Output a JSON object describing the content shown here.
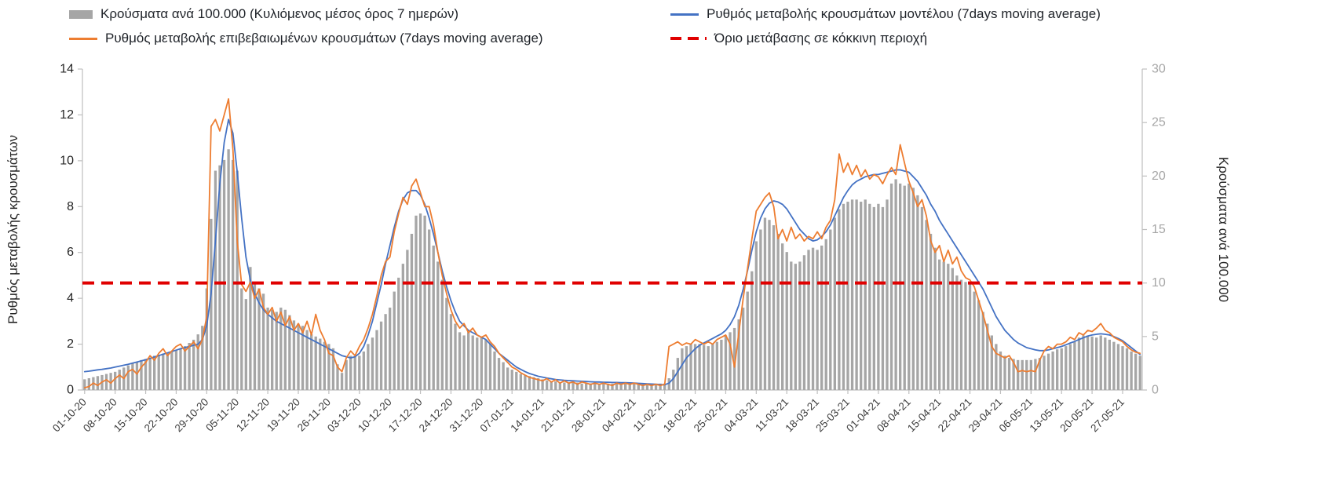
{
  "page": {
    "background": "#ffffff"
  },
  "chart_data": {
    "type": "combo",
    "title": "",
    "n_days": 243,
    "x_axis": {
      "tick_interval_days": 7,
      "tick_labels": [
        "01-10-20",
        "08-10-20",
        "15-10-20",
        "22-10-20",
        "29-10-20",
        "05-11-20",
        "12-11-20",
        "19-11-20",
        "26-11-20",
        "03-12-20",
        "10-12-20",
        "17-12-20",
        "24-12-20",
        "31-12-20",
        "07-01-21",
        "14-01-21",
        "21-01-21",
        "28-01-21",
        "04-02-21",
        "11-02-21",
        "18-02-21",
        "25-02-21",
        "04-03-21",
        "11-03-21",
        "18-03-21",
        "25-03-21",
        "01-04-21",
        "08-04-21",
        "15-04-21",
        "22-04-21",
        "29-04-21",
        "06-05-21",
        "13-05-21",
        "20-05-21",
        "27-05-21"
      ]
    },
    "left_axis": {
      "label": "Ρυθμός μεταβολής κρουσμάτων",
      "min": 0,
      "max": 14,
      "ticks": [
        0,
        2,
        4,
        6,
        8,
        10,
        12,
        14
      ]
    },
    "right_axis": {
      "label": "Κρούσματα ανά 100.000",
      "min": 0,
      "max": 30,
      "ticks": [
        0,
        5,
        10,
        15,
        20,
        25,
        30
      ]
    },
    "grid": false,
    "legend_position": "top",
    "series": [
      {
        "name": "Κρούσματα ανά 100.000 (Κυλιόμενος μέσος όρος 7 ημερών)",
        "kind": "bar",
        "axis": "right",
        "color": "#a6a6a6",
        "values": [
          1.0,
          1.1,
          1.2,
          1.3,
          1.4,
          1.5,
          1.6,
          1.7,
          1.9,
          2.1,
          2.3,
          2.5,
          2.6,
          2.8,
          2.9,
          3.0,
          3.2,
          3.3,
          3.4,
          3.5,
          3.6,
          3.7,
          3.9,
          4.1,
          4.4,
          4.7,
          5.2,
          6.0,
          9.5,
          16.0,
          20.5,
          21.0,
          21.5,
          22.5,
          21.5,
          20.5,
          9.5,
          8.5,
          11.5,
          10.0,
          9.5,
          9.0,
          7.7,
          7.5,
          7.3,
          7.7,
          7.5,
          7.0,
          6.5,
          6.2,
          6.0,
          5.6,
          5.2,
          5.0,
          4.8,
          4.5,
          4.3,
          3.9,
          2.4,
          1.6,
          2.8,
          3.2,
          3.1,
          3.2,
          3.6,
          4.3,
          4.9,
          5.6,
          6.4,
          7.1,
          7.7,
          9.2,
          10.5,
          11.8,
          13.1,
          14.6,
          16.3,
          16.5,
          16.3,
          15.0,
          13.5,
          12.0,
          10.3,
          8.6,
          7.1,
          6.2,
          5.4,
          5.1,
          5.4,
          5.1,
          4.9,
          4.9,
          4.7,
          4.3,
          3.6,
          3.0,
          2.6,
          2.1,
          1.9,
          1.7,
          1.5,
          1.4,
          1.3,
          1.2,
          1.1,
          1.0,
          0.9,
          0.8,
          0.8,
          0.7,
          0.7,
          0.7,
          0.7,
          0.7,
          0.6,
          0.6,
          0.6,
          0.6,
          0.6,
          0.6,
          0.6,
          0.6,
          0.6,
          0.6,
          0.6,
          0.6,
          0.6,
          0.6,
          0.6,
          0.5,
          0.5,
          0.5,
          0.6,
          0.6,
          1.1,
          1.9,
          3.0,
          3.9,
          4.1,
          4.3,
          4.3,
          4.3,
          4.2,
          4.1,
          4.3,
          4.5,
          4.7,
          5.1,
          5.4,
          5.8,
          6.6,
          7.7,
          9.2,
          11.1,
          13.9,
          15.0,
          16.1,
          15.9,
          15.4,
          14.6,
          13.7,
          12.9,
          12.0,
          11.8,
          12.0,
          12.6,
          13.1,
          13.3,
          13.1,
          13.5,
          14.1,
          15.0,
          16.1,
          16.9,
          17.4,
          17.6,
          17.8,
          17.8,
          17.6,
          17.8,
          17.4,
          17.1,
          17.4,
          17.1,
          17.8,
          19.3,
          19.7,
          19.3,
          19.1,
          19.3,
          18.9,
          18.2,
          17.1,
          15.9,
          14.6,
          13.3,
          12.2,
          12.0,
          11.8,
          11.4,
          10.7,
          10.3,
          10.1,
          9.9,
          9.2,
          8.4,
          7.3,
          6.2,
          5.1,
          4.3,
          3.6,
          3.2,
          3.0,
          2.9,
          2.8,
          2.8,
          2.8,
          2.8,
          2.9,
          3.0,
          3.2,
          3.4,
          3.6,
          3.8,
          3.9,
          4.1,
          4.3,
          4.5,
          4.9,
          5.1,
          5.1,
          5.0,
          4.9,
          5.1,
          4.9,
          4.7,
          4.5,
          4.3,
          4.1,
          3.9,
          3.6,
          3.4,
          3.2
        ]
      },
      {
        "name": "Ρυθμός μεταβολής κρουσμάτων μοντέλου (7days moving average)",
        "kind": "line",
        "axis": "left",
        "color": "#4472c4",
        "values": [
          0.8,
          0.82,
          0.85,
          0.88,
          0.9,
          0.93,
          0.96,
          1.0,
          1.04,
          1.08,
          1.12,
          1.17,
          1.22,
          1.27,
          1.32,
          1.38,
          1.44,
          1.5,
          1.56,
          1.62,
          1.68,
          1.74,
          1.8,
          1.85,
          1.9,
          1.95,
          2.0,
          2.2,
          2.8,
          4.2,
          6.5,
          9.0,
          10.8,
          11.8,
          11.2,
          9.5,
          7.5,
          5.8,
          4.8,
          4.2,
          3.8,
          3.5,
          3.3,
          3.15,
          3.0,
          2.9,
          2.8,
          2.7,
          2.6,
          2.5,
          2.4,
          2.3,
          2.2,
          2.1,
          2.0,
          1.9,
          1.8,
          1.7,
          1.6,
          1.5,
          1.45,
          1.4,
          1.45,
          1.6,
          1.9,
          2.4,
          3.0,
          3.8,
          4.6,
          5.5,
          6.3,
          7.1,
          7.8,
          8.3,
          8.6,
          8.7,
          8.7,
          8.5,
          8.1,
          7.5,
          6.8,
          6.0,
          5.2,
          4.5,
          3.9,
          3.4,
          3.0,
          2.8,
          2.6,
          2.5,
          2.4,
          2.3,
          2.2,
          2.0,
          1.8,
          1.6,
          1.45,
          1.3,
          1.15,
          1.0,
          0.9,
          0.8,
          0.72,
          0.66,
          0.6,
          0.56,
          0.52,
          0.49,
          0.46,
          0.44,
          0.42,
          0.41,
          0.4,
          0.39,
          0.38,
          0.37,
          0.36,
          0.35,
          0.35,
          0.34,
          0.34,
          0.33,
          0.33,
          0.32,
          0.32,
          0.31,
          0.3,
          0.29,
          0.28,
          0.27,
          0.26,
          0.25,
          0.24,
          0.23,
          0.3,
          0.5,
          0.8,
          1.1,
          1.4,
          1.6,
          1.8,
          1.95,
          2.05,
          2.15,
          2.25,
          2.35,
          2.45,
          2.6,
          2.85,
          3.2,
          3.7,
          4.4,
          5.2,
          6.1,
          6.9,
          7.5,
          7.9,
          8.15,
          8.25,
          8.2,
          8.1,
          7.9,
          7.6,
          7.3,
          7.0,
          6.8,
          6.6,
          6.5,
          6.55,
          6.7,
          6.9,
          7.2,
          7.6,
          8.0,
          8.4,
          8.7,
          8.95,
          9.1,
          9.2,
          9.3,
          9.35,
          9.4,
          9.4,
          9.45,
          9.5,
          9.55,
          9.6,
          9.6,
          9.55,
          9.5,
          9.3,
          9.1,
          8.8,
          8.5,
          8.1,
          7.8,
          7.4,
          7.1,
          6.8,
          6.5,
          6.2,
          5.9,
          5.6,
          5.3,
          5.0,
          4.7,
          4.4,
          4.0,
          3.6,
          3.2,
          2.9,
          2.6,
          2.4,
          2.2,
          2.05,
          1.95,
          1.85,
          1.8,
          1.75,
          1.72,
          1.72,
          1.75,
          1.8,
          1.85,
          1.9,
          1.97,
          2.05,
          2.12,
          2.2,
          2.28,
          2.35,
          2.4,
          2.43,
          2.45,
          2.43,
          2.4,
          2.33,
          2.25,
          2.15,
          2.0,
          1.85,
          1.7,
          1.55
        ]
      },
      {
        "name": "Ρυθμός μεταβολής επιβεβαιωμένων κρουσμάτων (7days moving average)",
        "kind": "line",
        "axis": "left",
        "color": "#ed7d31",
        "values": [
          0.1,
          0.15,
          0.3,
          0.2,
          0.35,
          0.45,
          0.3,
          0.5,
          0.65,
          0.5,
          0.8,
          0.9,
          0.7,
          1.0,
          1.2,
          1.5,
          1.3,
          1.6,
          1.8,
          1.5,
          1.7,
          1.9,
          2.0,
          1.7,
          1.9,
          2.1,
          1.8,
          2.2,
          3.2,
          11.5,
          11.8,
          11.3,
          12.0,
          12.7,
          10.5,
          6.5,
          4.6,
          4.3,
          4.7,
          4.0,
          4.4,
          3.6,
          3.3,
          3.6,
          3.0,
          3.4,
          2.8,
          3.2,
          2.6,
          2.9,
          2.5,
          3.0,
          2.4,
          3.3,
          2.6,
          2.2,
          1.6,
          1.5,
          1.0,
          0.8,
          1.4,
          1.7,
          1.5,
          1.9,
          2.2,
          2.7,
          3.3,
          4.1,
          5.0,
          5.6,
          5.8,
          6.9,
          7.7,
          8.4,
          8.1,
          8.9,
          9.2,
          8.6,
          8.0,
          8.0,
          7.2,
          6.0,
          5.0,
          4.2,
          3.5,
          3.0,
          2.7,
          2.9,
          2.5,
          2.7,
          2.4,
          2.3,
          2.4,
          2.1,
          1.9,
          1.6,
          1.4,
          1.2,
          1.0,
          0.9,
          0.75,
          0.65,
          0.55,
          0.5,
          0.45,
          0.4,
          0.5,
          0.35,
          0.45,
          0.3,
          0.4,
          0.3,
          0.35,
          0.25,
          0.35,
          0.3,
          0.25,
          0.3,
          0.25,
          0.3,
          0.25,
          0.2,
          0.3,
          0.25,
          0.3,
          0.25,
          0.3,
          0.25,
          0.2,
          0.25,
          0.2,
          0.25,
          0.2,
          0.25,
          1.9,
          2.0,
          2.1,
          1.95,
          2.05,
          2.0,
          2.2,
          2.1,
          2.0,
          2.1,
          2.0,
          2.2,
          2.3,
          2.4,
          2.0,
          1.0,
          2.5,
          4.0,
          5.3,
          6.6,
          7.8,
          8.1,
          8.4,
          8.6,
          8.0,
          6.6,
          7.0,
          6.5,
          7.1,
          6.6,
          6.8,
          6.5,
          6.7,
          6.6,
          6.9,
          6.6,
          7.1,
          7.4,
          8.3,
          10.3,
          9.5,
          9.9,
          9.4,
          9.8,
          9.3,
          9.6,
          9.2,
          9.4,
          9.3,
          9.0,
          9.4,
          9.7,
          9.4,
          10.7,
          9.9,
          9.1,
          8.6,
          8.0,
          8.3,
          7.6,
          6.5,
          6.0,
          6.3,
          5.6,
          6.1,
          5.5,
          5.8,
          5.2,
          4.9,
          4.8,
          4.5,
          3.9,
          3.3,
          2.6,
          1.9,
          1.6,
          1.5,
          1.4,
          1.5,
          1.2,
          0.8,
          0.85,
          0.8,
          0.85,
          0.8,
          1.3,
          1.7,
          1.9,
          1.8,
          2.0,
          2.0,
          2.1,
          2.3,
          2.2,
          2.5,
          2.4,
          2.6,
          2.55,
          2.7,
          2.9,
          2.6,
          2.5,
          2.3,
          2.2,
          2.1,
          1.9,
          1.75,
          1.65,
          1.6
        ]
      },
      {
        "name": "Όριο μετάβασης σε κόκκινη περιοχή",
        "kind": "threshold",
        "axis": "right",
        "color": "#e00000",
        "dashed": true,
        "value": 10
      }
    ]
  }
}
